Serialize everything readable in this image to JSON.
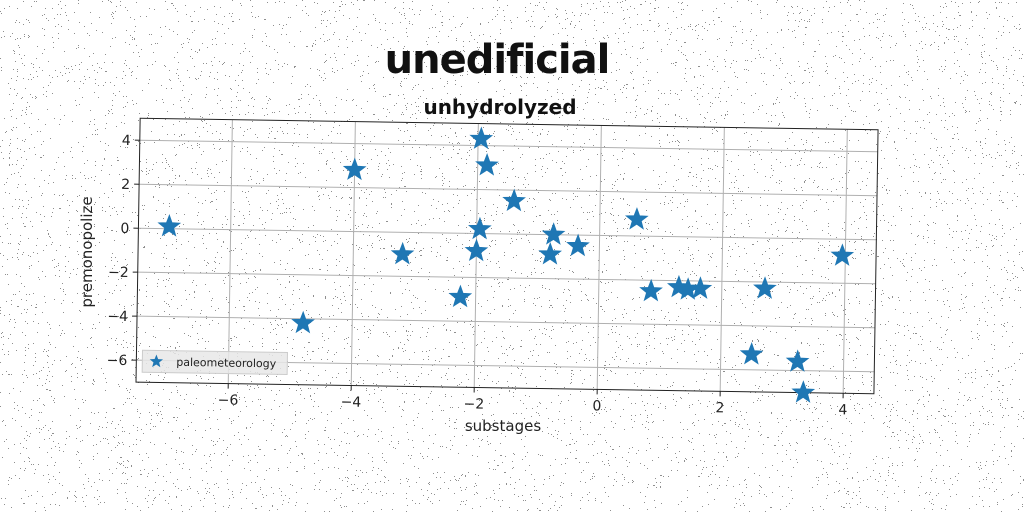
{
  "chart_data": {
    "type": "scatter",
    "title": "unedificial",
    "subtitle": "unhydrolyzed",
    "xlabel": "substages",
    "ylabel": "premonopolize",
    "xlim": [
      -7.5,
      4.5
    ],
    "ylim": [
      -7,
      5
    ],
    "xticks": [
      -6,
      -4,
      -2,
      0,
      2,
      4
    ],
    "yticks": [
      -6,
      -4,
      -2,
      0,
      2,
      4
    ],
    "xtick_labels": [
      "−6",
      "−4",
      "−2",
      "0",
      "2",
      "4"
    ],
    "ytick_labels": [
      "−6",
      "−4",
      "−2",
      "0",
      "2",
      "4"
    ],
    "grid": true,
    "legend_position": "lower-left",
    "marker": "star",
    "color": "#1f77b4",
    "series": [
      {
        "name": "paleometeorology",
        "points": [
          {
            "x": -7.0,
            "y": 0.1
          },
          {
            "x": -4.8,
            "y": -4.2
          },
          {
            "x": -4.0,
            "y": 2.8
          },
          {
            "x": -3.2,
            "y": -1.0
          },
          {
            "x": -2.25,
            "y": -2.9
          },
          {
            "x": -2.0,
            "y": -0.8
          },
          {
            "x": -1.95,
            "y": 0.2
          },
          {
            "x": -1.95,
            "y": 4.3
          },
          {
            "x": -1.85,
            "y": 3.1
          },
          {
            "x": -1.4,
            "y": 1.5
          },
          {
            "x": -0.8,
            "y": -0.9
          },
          {
            "x": -0.75,
            "y": 0.0
          },
          {
            "x": -0.35,
            "y": -0.5
          },
          {
            "x": 0.6,
            "y": 0.75
          },
          {
            "x": 0.85,
            "y": -2.5
          },
          {
            "x": 1.3,
            "y": -2.3
          },
          {
            "x": 1.45,
            "y": -2.4
          },
          {
            "x": 1.65,
            "y": -2.35
          },
          {
            "x": 2.5,
            "y": -5.3
          },
          {
            "x": 2.7,
            "y": -2.3
          },
          {
            "x": 3.25,
            "y": -5.6
          },
          {
            "x": 3.35,
            "y": -7.0
          },
          {
            "x": 3.95,
            "y": -0.75
          }
        ]
      }
    ]
  }
}
